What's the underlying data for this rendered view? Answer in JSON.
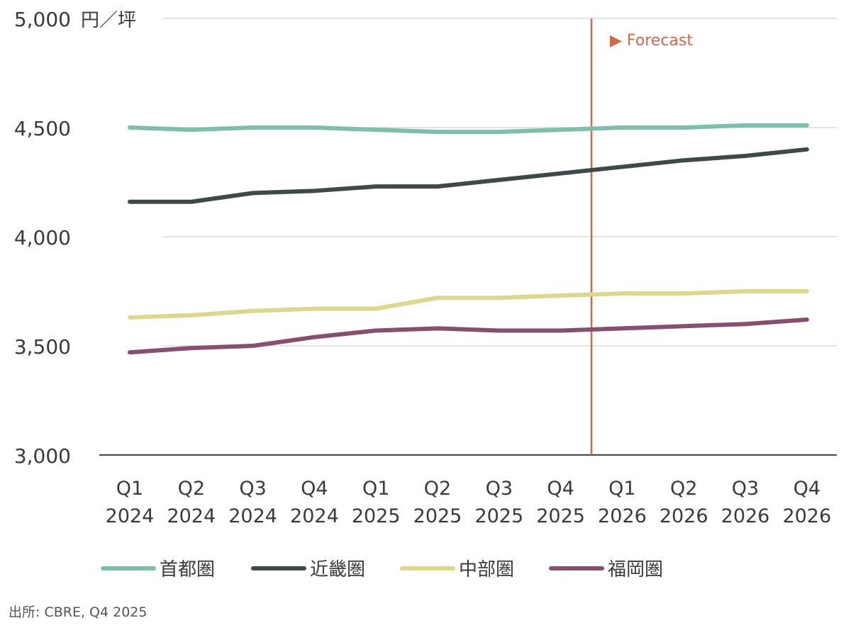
{
  "chart_data": {
    "type": "line",
    "unit_label": "円／坪",
    "ylim": [
      3000,
      5000
    ],
    "yticks": [
      "3,000",
      "3,500",
      "4,000",
      "4,500",
      "5,000"
    ],
    "ytick_values": [
      3000,
      3500,
      4000,
      4500,
      5000
    ],
    "grid": true,
    "categories": [
      [
        "Q1",
        "2024"
      ],
      [
        "Q2",
        "2024"
      ],
      [
        "Q3",
        "2024"
      ],
      [
        "Q4",
        "2024"
      ],
      [
        "Q1",
        "2025"
      ],
      [
        "Q2",
        "2025"
      ],
      [
        "Q3",
        "2025"
      ],
      [
        "Q4",
        "2025"
      ],
      [
        "Q1",
        "2026"
      ],
      [
        "Q2",
        "2026"
      ],
      [
        "Q3",
        "2026"
      ],
      [
        "Q4",
        "2026"
      ]
    ],
    "forecast_label": "▶ Forecast",
    "forecast_after_index": 7,
    "series": [
      {
        "name": "首都圏",
        "color": "#7dbfaa",
        "values": [
          4500,
          4490,
          4500,
          4500,
          4490,
          4480,
          4480,
          4490,
          4500,
          4500,
          4510,
          4510
        ]
      },
      {
        "name": "近畿圏",
        "color": "#3e4948",
        "values": [
          4160,
          4160,
          4200,
          4210,
          4230,
          4230,
          4260,
          4290,
          4320,
          4350,
          4370,
          4400
        ]
      },
      {
        "name": "中部圏",
        "color": "#dcd78f",
        "values": [
          3630,
          3640,
          3660,
          3670,
          3670,
          3720,
          3720,
          3730,
          3740,
          3740,
          3750,
          3750
        ]
      },
      {
        "name": "福岡圏",
        "color": "#874f6e",
        "values": [
          3470,
          3490,
          3500,
          3540,
          3570,
          3580,
          3570,
          3570,
          3580,
          3590,
          3600,
          3620
        ]
      }
    ],
    "legend_position": "bottom",
    "colors": {
      "forecast": "#d0694a",
      "grid": "#c8c8c8",
      "axis": "#444444",
      "text": "#3a3a3a"
    }
  },
  "source": "出所: CBRE, Q4 2025"
}
